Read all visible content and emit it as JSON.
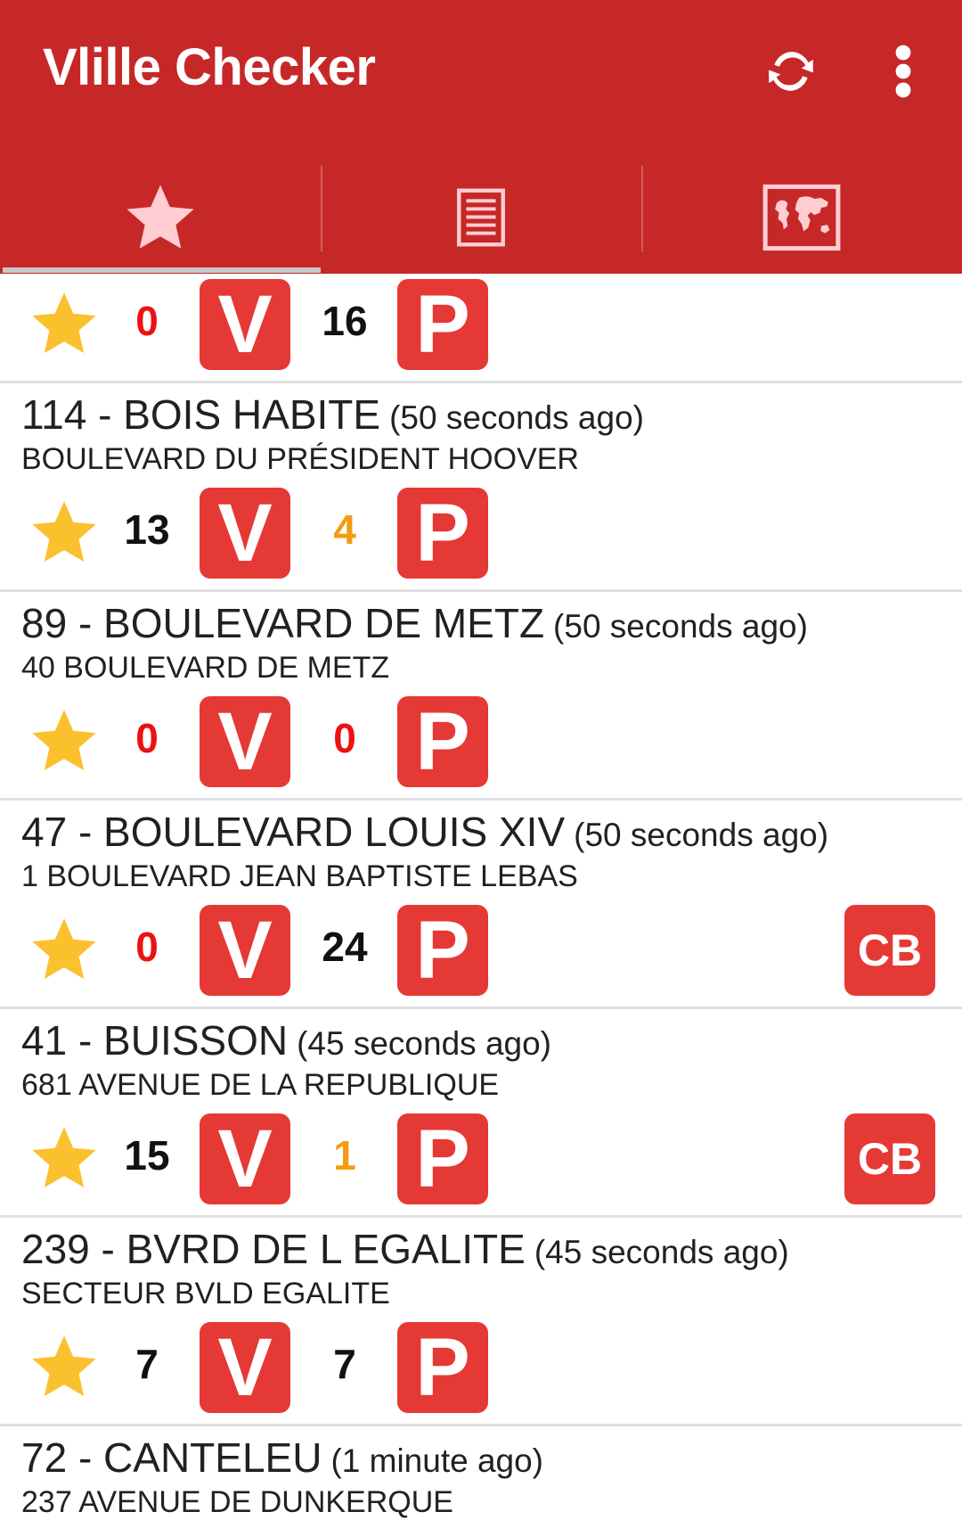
{
  "app": {
    "title": "Vlille Checker",
    "actions": [
      {
        "icon": "refresh-icon"
      },
      {
        "icon": "more-vert-icon"
      }
    ],
    "tabs": [
      {
        "icon": "star-icon",
        "selected": true
      },
      {
        "icon": "list-icon",
        "selected": false
      },
      {
        "icon": "map-icon",
        "selected": false
      }
    ]
  },
  "badges": {
    "bikes": "V",
    "places": "P",
    "card": "CB"
  },
  "colors": {
    "primary": "#c62828",
    "badge": "#e53935",
    "star": "#fbc02d",
    "zero": "#ee1111",
    "low": "#f39c12"
  },
  "stations": [
    {
      "name": "",
      "age": "",
      "address": "",
      "bikes": "0",
      "bikes_level": "red",
      "places": "16",
      "places_level": "black",
      "cb": false,
      "partial_top": true
    },
    {
      "name": "114 - BOIS HABITE",
      "age": "(50 seconds ago)",
      "address": "BOULEVARD DU PRÉSIDENT HOOVER",
      "bikes": "13",
      "bikes_level": "black",
      "places": "4",
      "places_level": "orange",
      "cb": false
    },
    {
      "name": "89 - BOULEVARD DE METZ",
      "age": "(50 seconds ago)",
      "address": "40 BOULEVARD DE METZ",
      "bikes": "0",
      "bikes_level": "red",
      "places": "0",
      "places_level": "red",
      "cb": false
    },
    {
      "name": "47 - BOULEVARD LOUIS XIV",
      "age": "(50 seconds ago)",
      "address": "1 BOULEVARD JEAN BAPTISTE LEBAS",
      "bikes": "0",
      "bikes_level": "red",
      "places": "24",
      "places_level": "black",
      "cb": true
    },
    {
      "name": "41 - BUISSON",
      "age": "(45 seconds ago)",
      "address": "681 AVENUE DE LA REPUBLIQUE",
      "bikes": "15",
      "bikes_level": "black",
      "places": "1",
      "places_level": "orange",
      "cb": true
    },
    {
      "name": "239 - BVRD DE L EGALITE",
      "age": "(45 seconds ago)",
      "address": "SECTEUR BVLD EGALITE",
      "bikes": "7",
      "bikes_level": "black",
      "places": "7",
      "places_level": "black",
      "cb": false
    },
    {
      "name": "72 - CANTELEU",
      "age": "(1 minute ago)",
      "address": "237 AVENUE DE DUNKERQUE",
      "partial_bottom": true
    }
  ]
}
